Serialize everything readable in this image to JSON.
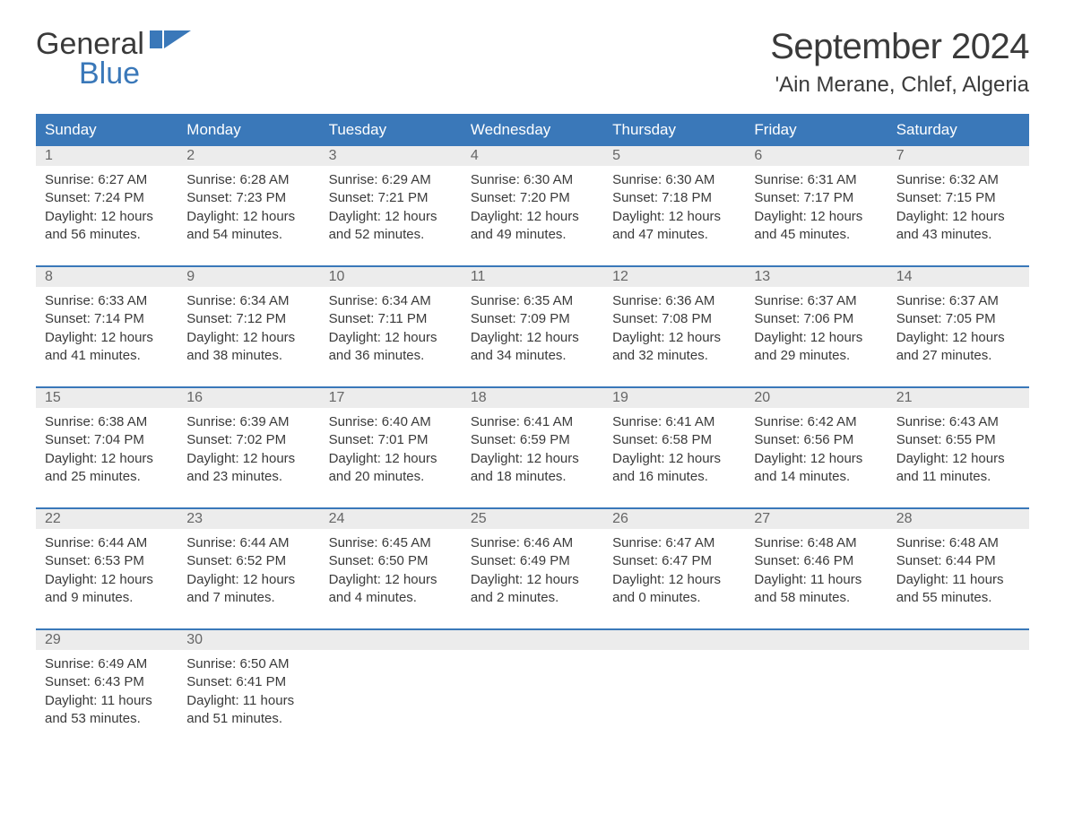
{
  "brand": {
    "word1": "General",
    "word2": "Blue"
  },
  "title": "September 2024",
  "location": "'Ain Merane, Chlef, Algeria",
  "colors": {
    "primary": "#3a78b9",
    "headerText": "#ffffff",
    "dayNumBg": "#ececec",
    "text": "#3a3a3a",
    "background": "#ffffff"
  },
  "typography": {
    "title_fontsize": 40,
    "location_fontsize": 24,
    "dayheader_fontsize": 17,
    "body_fontsize": 15
  },
  "dayNames": [
    "Sunday",
    "Monday",
    "Tuesday",
    "Wednesday",
    "Thursday",
    "Friday",
    "Saturday"
  ],
  "weeks": [
    [
      {
        "num": "1",
        "sunrise": "6:27 AM",
        "sunset": "7:24 PM",
        "daylight": "12 hours and 56 minutes."
      },
      {
        "num": "2",
        "sunrise": "6:28 AM",
        "sunset": "7:23 PM",
        "daylight": "12 hours and 54 minutes."
      },
      {
        "num": "3",
        "sunrise": "6:29 AM",
        "sunset": "7:21 PM",
        "daylight": "12 hours and 52 minutes."
      },
      {
        "num": "4",
        "sunrise": "6:30 AM",
        "sunset": "7:20 PM",
        "daylight": "12 hours and 49 minutes."
      },
      {
        "num": "5",
        "sunrise": "6:30 AM",
        "sunset": "7:18 PM",
        "daylight": "12 hours and 47 minutes."
      },
      {
        "num": "6",
        "sunrise": "6:31 AM",
        "sunset": "7:17 PM",
        "daylight": "12 hours and 45 minutes."
      },
      {
        "num": "7",
        "sunrise": "6:32 AM",
        "sunset": "7:15 PM",
        "daylight": "12 hours and 43 minutes."
      }
    ],
    [
      {
        "num": "8",
        "sunrise": "6:33 AM",
        "sunset": "7:14 PM",
        "daylight": "12 hours and 41 minutes."
      },
      {
        "num": "9",
        "sunrise": "6:34 AM",
        "sunset": "7:12 PM",
        "daylight": "12 hours and 38 minutes."
      },
      {
        "num": "10",
        "sunrise": "6:34 AM",
        "sunset": "7:11 PM",
        "daylight": "12 hours and 36 minutes."
      },
      {
        "num": "11",
        "sunrise": "6:35 AM",
        "sunset": "7:09 PM",
        "daylight": "12 hours and 34 minutes."
      },
      {
        "num": "12",
        "sunrise": "6:36 AM",
        "sunset": "7:08 PM",
        "daylight": "12 hours and 32 minutes."
      },
      {
        "num": "13",
        "sunrise": "6:37 AM",
        "sunset": "7:06 PM",
        "daylight": "12 hours and 29 minutes."
      },
      {
        "num": "14",
        "sunrise": "6:37 AM",
        "sunset": "7:05 PM",
        "daylight": "12 hours and 27 minutes."
      }
    ],
    [
      {
        "num": "15",
        "sunrise": "6:38 AM",
        "sunset": "7:04 PM",
        "daylight": "12 hours and 25 minutes."
      },
      {
        "num": "16",
        "sunrise": "6:39 AM",
        "sunset": "7:02 PM",
        "daylight": "12 hours and 23 minutes."
      },
      {
        "num": "17",
        "sunrise": "6:40 AM",
        "sunset": "7:01 PM",
        "daylight": "12 hours and 20 minutes."
      },
      {
        "num": "18",
        "sunrise": "6:41 AM",
        "sunset": "6:59 PM",
        "daylight": "12 hours and 18 minutes."
      },
      {
        "num": "19",
        "sunrise": "6:41 AM",
        "sunset": "6:58 PM",
        "daylight": "12 hours and 16 minutes."
      },
      {
        "num": "20",
        "sunrise": "6:42 AM",
        "sunset": "6:56 PM",
        "daylight": "12 hours and 14 minutes."
      },
      {
        "num": "21",
        "sunrise": "6:43 AM",
        "sunset": "6:55 PM",
        "daylight": "12 hours and 11 minutes."
      }
    ],
    [
      {
        "num": "22",
        "sunrise": "6:44 AM",
        "sunset": "6:53 PM",
        "daylight": "12 hours and 9 minutes."
      },
      {
        "num": "23",
        "sunrise": "6:44 AM",
        "sunset": "6:52 PM",
        "daylight": "12 hours and 7 minutes."
      },
      {
        "num": "24",
        "sunrise": "6:45 AM",
        "sunset": "6:50 PM",
        "daylight": "12 hours and 4 minutes."
      },
      {
        "num": "25",
        "sunrise": "6:46 AM",
        "sunset": "6:49 PM",
        "daylight": "12 hours and 2 minutes."
      },
      {
        "num": "26",
        "sunrise": "6:47 AM",
        "sunset": "6:47 PM",
        "daylight": "12 hours and 0 minutes."
      },
      {
        "num": "27",
        "sunrise": "6:48 AM",
        "sunset": "6:46 PM",
        "daylight": "11 hours and 58 minutes."
      },
      {
        "num": "28",
        "sunrise": "6:48 AM",
        "sunset": "6:44 PM",
        "daylight": "11 hours and 55 minutes."
      }
    ],
    [
      {
        "num": "29",
        "sunrise": "6:49 AM",
        "sunset": "6:43 PM",
        "daylight": "11 hours and 53 minutes."
      },
      {
        "num": "30",
        "sunrise": "6:50 AM",
        "sunset": "6:41 PM",
        "daylight": "11 hours and 51 minutes."
      },
      null,
      null,
      null,
      null,
      null
    ]
  ],
  "labels": {
    "sunrise": "Sunrise:",
    "sunset": "Sunset:",
    "daylight": "Daylight:"
  }
}
